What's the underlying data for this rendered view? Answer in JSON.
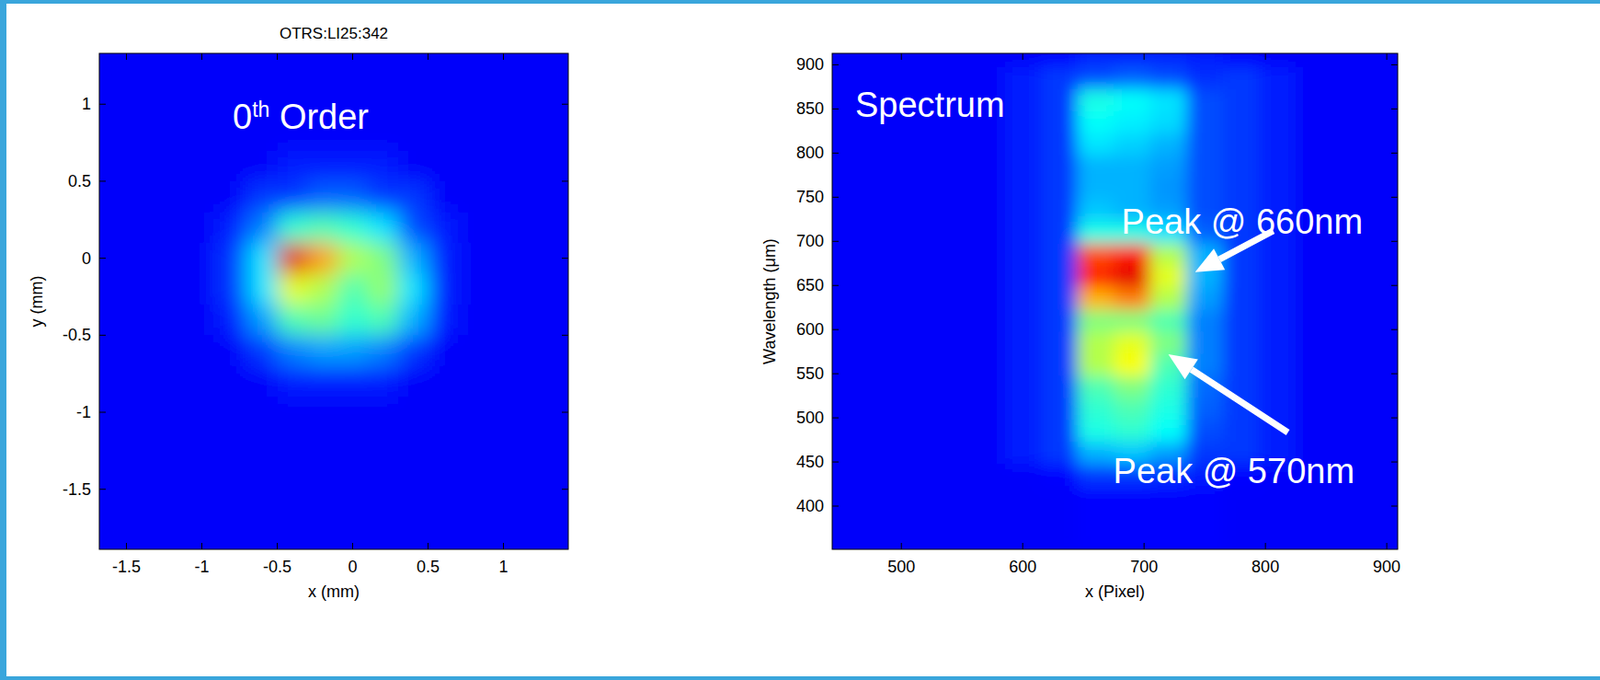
{
  "chart_data": [
    {
      "type": "heatmap",
      "title": "OTRS:LI25:342",
      "x_label": "x (mm)",
      "y_label": "y (mm)",
      "annotations": [
        {
          "text": "0th Order"
        }
      ],
      "xlim": [
        -1.68,
        1.43
      ],
      "ylim": [
        -1.89,
        1.33
      ],
      "xticks": [
        -1.5,
        -1,
        -0.5,
        0,
        0.5,
        1
      ],
      "yticks": [
        -1.5,
        -1,
        -0.5,
        0,
        0.5,
        1
      ],
      "zlim": [
        0,
        1
      ],
      "x": [
        -1.6,
        -1.4,
        -1.2,
        -1.0,
        -0.8,
        -0.6,
        -0.4,
        -0.2,
        0,
        0.2,
        0.4,
        0.6,
        0.8,
        1.0,
        1.2,
        1.4
      ],
      "y": [
        1.2,
        1.0,
        0.8,
        0.6,
        0.4,
        0.2,
        0,
        -0.2,
        -0.4,
        -0.6,
        -0.8,
        -1.0,
        -1.2,
        -1.4,
        -1.6,
        -1.8
      ],
      "cells": [
        [
          0.12,
          0.12,
          0.12,
          0.12,
          0.12,
          0.12,
          0.12,
          0.12,
          0.12,
          0.12,
          0.12,
          0.12,
          0.12,
          0.12,
          0.12,
          0.12
        ],
        [
          0.12,
          0.12,
          0.12,
          0.12,
          0.12,
          0.12,
          0.12,
          0.12,
          0.12,
          0.12,
          0.12,
          0.12,
          0.12,
          0.12,
          0.12,
          0.12
        ],
        [
          0.12,
          0.12,
          0.12,
          0.12,
          0.12,
          0.12,
          0.12,
          0.12,
          0.12,
          0.12,
          0.12,
          0.12,
          0.12,
          0.12,
          0.12,
          0.12
        ],
        [
          0.12,
          0.12,
          0.12,
          0.12,
          0.12,
          0.12,
          0.15,
          0.15,
          0.15,
          0.15,
          0.12,
          0.12,
          0.12,
          0.12,
          0.12,
          0.12
        ],
        [
          0.12,
          0.12,
          0.12,
          0.12,
          0.12,
          0.18,
          0.18,
          0.22,
          0.22,
          0.18,
          0.18,
          0.12,
          0.12,
          0.12,
          0.12,
          0.12
        ],
        [
          0.12,
          0.12,
          0.12,
          0.12,
          0.16,
          0.25,
          0.42,
          0.45,
          0.42,
          0.35,
          0.2,
          0.15,
          0.12,
          0.12,
          0.12,
          0.12
        ],
        [
          0.12,
          0.12,
          0.12,
          0.12,
          0.18,
          0.35,
          0.9,
          0.72,
          0.55,
          0.5,
          0.3,
          0.16,
          0.12,
          0.12,
          0.12,
          0.12
        ],
        [
          0.12,
          0.12,
          0.12,
          0.12,
          0.18,
          0.35,
          0.6,
          0.55,
          0.45,
          0.52,
          0.35,
          0.16,
          0.12,
          0.12,
          0.12,
          0.12
        ],
        [
          0.12,
          0.12,
          0.12,
          0.12,
          0.16,
          0.28,
          0.45,
          0.48,
          0.42,
          0.45,
          0.3,
          0.15,
          0.12,
          0.12,
          0.12,
          0.12
        ],
        [
          0.12,
          0.12,
          0.12,
          0.12,
          0.12,
          0.18,
          0.25,
          0.28,
          0.28,
          0.25,
          0.18,
          0.12,
          0.12,
          0.12,
          0.12,
          0.12
        ],
        [
          0.12,
          0.12,
          0.12,
          0.12,
          0.12,
          0.12,
          0.15,
          0.15,
          0.15,
          0.15,
          0.12,
          0.12,
          0.12,
          0.12,
          0.12,
          0.12
        ],
        [
          0.12,
          0.12,
          0.12,
          0.12,
          0.12,
          0.12,
          0.12,
          0.12,
          0.12,
          0.12,
          0.12,
          0.12,
          0.12,
          0.12,
          0.12,
          0.12
        ],
        [
          0.12,
          0.12,
          0.12,
          0.12,
          0.12,
          0.12,
          0.12,
          0.12,
          0.12,
          0.12,
          0.12,
          0.12,
          0.12,
          0.12,
          0.12,
          0.12
        ],
        [
          0.12,
          0.12,
          0.12,
          0.12,
          0.12,
          0.12,
          0.12,
          0.12,
          0.12,
          0.12,
          0.12,
          0.12,
          0.12,
          0.12,
          0.12,
          0.12
        ],
        [
          0.12,
          0.12,
          0.12,
          0.12,
          0.12,
          0.12,
          0.12,
          0.12,
          0.12,
          0.12,
          0.12,
          0.12,
          0.12,
          0.12,
          0.12,
          0.12
        ],
        [
          0.12,
          0.12,
          0.12,
          0.12,
          0.12,
          0.12,
          0.12,
          0.12,
          0.12,
          0.12,
          0.12,
          0.12,
          0.12,
          0.12,
          0.12,
          0.12
        ]
      ]
    },
    {
      "type": "heatmap",
      "x_label": "x (Pixel)",
      "y_label": "Wavelength (μm)",
      "annotations": [
        {
          "text": "Spectrum"
        },
        {
          "text": "Peak @ 660nm",
          "x": 742,
          "y": 665
        },
        {
          "text": "Peak @ 570nm",
          "x": 720,
          "y": 572
        }
      ],
      "xlim": [
        443,
        909
      ],
      "ylim": [
        351,
        913
      ],
      "xticks": [
        500,
        600,
        700,
        800,
        900
      ],
      "yticks": [
        400,
        450,
        500,
        550,
        600,
        650,
        700,
        750,
        800,
        850,
        900
      ],
      "zlim": [
        0,
        1
      ],
      "x": [
        450,
        480,
        510,
        540,
        570,
        600,
        630,
        660,
        690,
        720,
        750,
        780,
        810,
        840,
        870,
        900
      ],
      "y": [
        910,
        885,
        860,
        835,
        810,
        785,
        760,
        735,
        710,
        685,
        660,
        635,
        610,
        585,
        560,
        535,
        510,
        485,
        460,
        435,
        410,
        385,
        360
      ],
      "cells": [
        [
          0.12,
          0.12,
          0.12,
          0.12,
          0.12,
          0.12,
          0.13,
          0.16,
          0.16,
          0.16,
          0.15,
          0.13,
          0.12,
          0.12,
          0.12,
          0.12
        ],
        [
          0.12,
          0.12,
          0.12,
          0.12,
          0.12,
          0.15,
          0.18,
          0.2,
          0.22,
          0.2,
          0.17,
          0.18,
          0.15,
          0.12,
          0.12,
          0.12
        ],
        [
          0.12,
          0.12,
          0.12,
          0.12,
          0.12,
          0.15,
          0.18,
          0.4,
          0.38,
          0.35,
          0.2,
          0.18,
          0.15,
          0.12,
          0.12,
          0.12
        ],
        [
          0.12,
          0.12,
          0.12,
          0.12,
          0.12,
          0.15,
          0.18,
          0.38,
          0.36,
          0.34,
          0.2,
          0.18,
          0.15,
          0.12,
          0.12,
          0.12
        ],
        [
          0.12,
          0.12,
          0.12,
          0.12,
          0.12,
          0.15,
          0.18,
          0.35,
          0.33,
          0.3,
          0.2,
          0.18,
          0.15,
          0.12,
          0.12,
          0.12
        ],
        [
          0.12,
          0.12,
          0.12,
          0.12,
          0.12,
          0.15,
          0.18,
          0.3,
          0.3,
          0.28,
          0.2,
          0.18,
          0.15,
          0.12,
          0.12,
          0.12
        ],
        [
          0.12,
          0.12,
          0.12,
          0.12,
          0.12,
          0.15,
          0.18,
          0.3,
          0.3,
          0.27,
          0.2,
          0.18,
          0.15,
          0.12,
          0.12,
          0.12
        ],
        [
          0.12,
          0.12,
          0.12,
          0.12,
          0.12,
          0.15,
          0.18,
          0.32,
          0.3,
          0.28,
          0.2,
          0.18,
          0.15,
          0.12,
          0.12,
          0.12
        ],
        [
          0.12,
          0.12,
          0.12,
          0.12,
          0.12,
          0.15,
          0.18,
          0.4,
          0.4,
          0.35,
          0.22,
          0.18,
          0.15,
          0.12,
          0.12,
          0.12
        ],
        [
          0.12,
          0.12,
          0.12,
          0.12,
          0.12,
          0.15,
          0.18,
          0.8,
          0.85,
          0.55,
          0.3,
          0.18,
          0.15,
          0.12,
          0.12,
          0.12
        ],
        [
          0.12,
          0.12,
          0.12,
          0.12,
          0.12,
          0.15,
          0.18,
          0.85,
          0.9,
          0.6,
          0.3,
          0.18,
          0.15,
          0.12,
          0.12,
          0.12
        ],
        [
          0.12,
          0.12,
          0.12,
          0.12,
          0.12,
          0.15,
          0.18,
          0.7,
          0.75,
          0.55,
          0.28,
          0.18,
          0.15,
          0.12,
          0.12,
          0.12
        ],
        [
          0.12,
          0.12,
          0.12,
          0.12,
          0.12,
          0.15,
          0.18,
          0.5,
          0.5,
          0.45,
          0.25,
          0.18,
          0.15,
          0.12,
          0.12,
          0.12
        ],
        [
          0.12,
          0.12,
          0.12,
          0.12,
          0.12,
          0.15,
          0.18,
          0.55,
          0.6,
          0.5,
          0.25,
          0.18,
          0.15,
          0.12,
          0.12,
          0.12
        ],
        [
          0.12,
          0.12,
          0.12,
          0.12,
          0.12,
          0.15,
          0.18,
          0.55,
          0.62,
          0.45,
          0.25,
          0.18,
          0.15,
          0.12,
          0.12,
          0.12
        ],
        [
          0.12,
          0.12,
          0.12,
          0.12,
          0.12,
          0.15,
          0.18,
          0.45,
          0.5,
          0.42,
          0.23,
          0.18,
          0.15,
          0.12,
          0.12,
          0.12
        ],
        [
          0.12,
          0.12,
          0.12,
          0.12,
          0.12,
          0.15,
          0.18,
          0.42,
          0.45,
          0.4,
          0.22,
          0.18,
          0.15,
          0.12,
          0.12,
          0.12
        ],
        [
          0.12,
          0.12,
          0.12,
          0.12,
          0.12,
          0.15,
          0.18,
          0.4,
          0.42,
          0.38,
          0.2,
          0.18,
          0.15,
          0.12,
          0.12,
          0.12
        ],
        [
          0.12,
          0.12,
          0.12,
          0.12,
          0.12,
          0.15,
          0.18,
          0.3,
          0.32,
          0.28,
          0.18,
          0.18,
          0.15,
          0.12,
          0.12,
          0.12
        ],
        [
          0.12,
          0.12,
          0.12,
          0.12,
          0.12,
          0.12,
          0.13,
          0.18,
          0.18,
          0.17,
          0.15,
          0.13,
          0.12,
          0.12,
          0.12,
          0.12
        ],
        [
          0.12,
          0.12,
          0.12,
          0.12,
          0.12,
          0.12,
          0.12,
          0.13,
          0.13,
          0.13,
          0.13,
          0.12,
          0.12,
          0.12,
          0.12,
          0.12
        ],
        [
          0.12,
          0.12,
          0.12,
          0.12,
          0.12,
          0.12,
          0.12,
          0.13,
          0.13,
          0.13,
          0.13,
          0.12,
          0.12,
          0.12,
          0.12,
          0.12
        ],
        [
          0.12,
          0.12,
          0.12,
          0.12,
          0.12,
          0.12,
          0.12,
          0.13,
          0.13,
          0.13,
          0.13,
          0.12,
          0.12,
          0.12,
          0.12,
          0.12
        ]
      ]
    }
  ]
}
